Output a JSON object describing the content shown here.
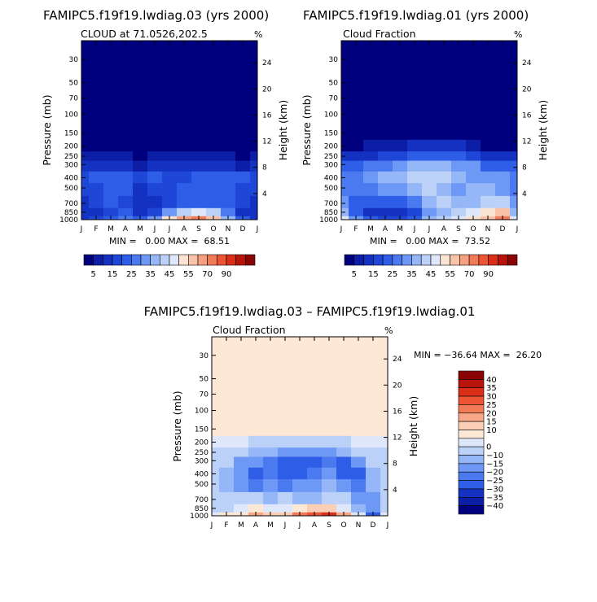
{
  "months": [
    "J",
    "F",
    "M",
    "A",
    "M",
    "J",
    "J",
    "A",
    "S",
    "O",
    "N",
    "D",
    "J"
  ],
  "pressure_ticks": [
    30,
    50,
    70,
    100,
    150,
    200,
    250,
    300,
    400,
    500,
    700,
    850,
    1000
  ],
  "height_ticks": [
    24,
    20,
    16,
    12,
    8,
    4
  ],
  "ylabel": "Pressure (mb)",
  "ylabel_right": "Height (km)",
  "pct": "%",
  "palette": {
    "abs": [
      "#00007f",
      "#0d1ea6",
      "#1432c2",
      "#1e46d7",
      "#2e5ee8",
      "#4a79f0",
      "#6e98f5",
      "#95b6f7",
      "#bcd1f8",
      "#dfe8fa",
      "#fbe3d2",
      "#f8c3a8",
      "#f5a07f",
      "#f27b57",
      "#ec5433",
      "#da2e18",
      "#b8140b",
      "#8a0406"
    ],
    "diff": [
      "#00007f",
      "#0d1ea6",
      "#1432c2",
      "#2e5ee8",
      "#4a79f0",
      "#6e98f5",
      "#95b6f7",
      "#bcd1f8",
      "#dfe8fa",
      "#fde8d6",
      "#fbcfb5",
      "#f8a888",
      "#f27b57",
      "#ec5433",
      "#da2e18",
      "#b8140b",
      "#8a0406"
    ]
  },
  "chart_data": [
    {
      "type": "heatmap",
      "title": "FAMIPC5.f19f19.lwdiag.03 (yrs 2000)",
      "subtitle": "CLOUD at 71.0526,202.5",
      "stats": "MIN =   0.00 MAX =  68.51",
      "x": [
        "J",
        "F",
        "M",
        "A",
        "M",
        "J",
        "J",
        "A",
        "S",
        "O",
        "N",
        "D",
        "J"
      ],
      "y_pressure": [
        1000,
        850,
        700,
        500,
        400,
        300,
        250,
        200,
        150
      ],
      "values": [
        [
          12,
          15,
          20,
          28,
          22,
          30,
          50,
          62,
          68,
          55,
          38,
          20,
          12
        ],
        [
          10,
          12,
          18,
          22,
          14,
          18,
          30,
          42,
          48,
          40,
          28,
          14,
          10
        ],
        [
          14,
          16,
          20,
          18,
          12,
          14,
          18,
          22,
          24,
          22,
          20,
          16,
          14
        ],
        [
          16,
          18,
          22,
          20,
          14,
          18,
          16,
          20,
          22,
          24,
          22,
          18,
          16
        ],
        [
          18,
          20,
          22,
          22,
          18,
          20,
          18,
          18,
          20,
          24,
          24,
          20,
          18
        ],
        [
          12,
          14,
          14,
          10,
          8,
          10,
          12,
          14,
          14,
          12,
          10,
          8,
          12
        ],
        [
          6,
          8,
          8,
          5,
          4,
          5,
          6,
          7,
          7,
          6,
          5,
          4,
          6
        ],
        [
          2,
          2,
          2,
          2,
          1,
          1,
          2,
          2,
          2,
          2,
          1,
          1,
          2
        ],
        [
          0,
          0,
          0,
          0,
          0,
          0,
          0,
          0,
          0,
          0,
          0,
          0,
          0
        ]
      ],
      "colorbar_labels": [
        "5",
        "15",
        "25",
        "35",
        "45",
        "55",
        "70",
        "90"
      ]
    },
    {
      "type": "heatmap",
      "title": "FAMIPC5.f19f19.lwdiag.01 (yrs 2000)",
      "subtitle": "Cloud Fraction",
      "stats": "MIN =   0.00 MAX =  73.52",
      "x": [
        "J",
        "F",
        "M",
        "A",
        "M",
        "J",
        "J",
        "A",
        "S",
        "O",
        "N",
        "D",
        "J"
      ],
      "y_pressure": [
        1000,
        850,
        700,
        500,
        400,
        300,
        250,
        200,
        150
      ],
      "values": [
        [
          45,
          30,
          20,
          16,
          18,
          22,
          35,
          40,
          45,
          50,
          55,
          65,
          45
        ],
        [
          38,
          22,
          14,
          12,
          10,
          18,
          30,
          36,
          42,
          46,
          50,
          55,
          38
        ],
        [
          30,
          24,
          20,
          22,
          22,
          28,
          36,
          40,
          36,
          38,
          42,
          44,
          30
        ],
        [
          28,
          26,
          28,
          30,
          32,
          38,
          40,
          36,
          34,
          36,
          38,
          34,
          28
        ],
        [
          26,
          28,
          32,
          36,
          38,
          42,
          44,
          40,
          38,
          34,
          32,
          30,
          26
        ],
        [
          20,
          22,
          26,
          28,
          30,
          36,
          38,
          36,
          34,
          30,
          24,
          20,
          20
        ],
        [
          10,
          12,
          14,
          16,
          18,
          22,
          24,
          22,
          22,
          18,
          12,
          10,
          10
        ],
        [
          3,
          4,
          5,
          6,
          8,
          10,
          12,
          12,
          12,
          8,
          4,
          3,
          3
        ],
        [
          0,
          0,
          0,
          0,
          0,
          0,
          0,
          0,
          0,
          0,
          0,
          0,
          0
        ]
      ],
      "colorbar_labels": [
        "5",
        "15",
        "25",
        "35",
        "45",
        "55",
        "70",
        "90"
      ]
    },
    {
      "type": "heatmap",
      "title": "FAMIPC5.f19f19.lwdiag.03 – FAMIPC5.f19f19.lwdiag.01",
      "subtitle": "Cloud Fraction",
      "stats": "MIN = −36.64 MAX =  26.20",
      "x": [
        "J",
        "F",
        "M",
        "A",
        "M",
        "J",
        "J",
        "A",
        "S",
        "O",
        "N",
        "D",
        "J"
      ],
      "y_pressure": [
        1000,
        850,
        700,
        500,
        400,
        300,
        250,
        200,
        150
      ],
      "values": [
        [
          -4,
          2,
          1,
          10,
          5,
          8,
          15,
          22,
          26,
          10,
          -5,
          -28,
          -4
        ],
        [
          -8,
          -6,
          -2,
          4,
          -2,
          -4,
          2,
          6,
          8,
          -2,
          -12,
          -20,
          -8
        ],
        [
          -8,
          -10,
          -8,
          -10,
          -12,
          -10,
          -14,
          -12,
          -8,
          -10,
          -18,
          -16,
          -8
        ],
        [
          -10,
          -12,
          -16,
          -22,
          -20,
          -22,
          -18,
          -16,
          -14,
          -20,
          -24,
          -14,
          -10
        ],
        [
          -10,
          -12,
          -20,
          -26,
          -24,
          -30,
          -26,
          -22,
          -18,
          -30,
          -26,
          -12,
          -10
        ],
        [
          -8,
          -10,
          -18,
          -20,
          -22,
          -28,
          -30,
          -26,
          -24,
          -28,
          -18,
          -10,
          -8
        ],
        [
          -6,
          -8,
          -10,
          -12,
          -14,
          -18,
          -20,
          -18,
          -16,
          -14,
          -10,
          -6,
          -6
        ],
        [
          -2,
          -4,
          -4,
          -6,
          -8,
          -10,
          -10,
          -10,
          -10,
          -8,
          -4,
          -2,
          -2
        ],
        [
          0,
          0,
          0,
          0,
          0,
          0,
          0,
          0,
          0,
          0,
          0,
          0,
          0
        ]
      ],
      "colorbar_labels": [
        "40",
        "35",
        "30",
        "25",
        "20",
        "15",
        "10",
        "0",
        "−10",
        "−15",
        "−20",
        "−25",
        "−30",
        "−35",
        "−40"
      ]
    }
  ]
}
